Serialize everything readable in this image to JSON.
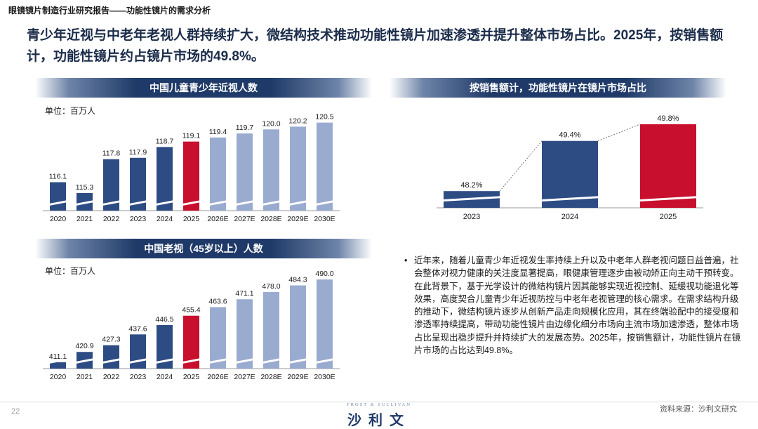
{
  "header": {
    "breadcrumb": "眼镜镜片制造行业研究报告——功能性镜片的需求分析",
    "headline": "青少年近视与中老年老视人群持续扩大，微结构技术推动功能性镜片加速渗透并提升整体市场占比。2025年，按销售额计，功能性镜片约占镜片市场的49.8%。"
  },
  "colors": {
    "navy": "#2e4c84",
    "light": "#9aabd0",
    "red": "#c8102e",
    "banner": "#1f3a68"
  },
  "chart_data": [
    {
      "type": "bar",
      "title": "中国儿童青少年近视人数",
      "unit": "单位：百万人",
      "categories": [
        "2020",
        "2021",
        "2022",
        "2023",
        "2024",
        "2025",
        "2026E",
        "2027E",
        "2028E",
        "2029E",
        "2030E"
      ],
      "values": [
        116.1,
        115.3,
        117.8,
        117.9,
        118.7,
        119.1,
        119.4,
        119.7,
        120.0,
        120.2,
        120.5
      ],
      "labels": [
        "116.1",
        "115.3",
        "117.8",
        "117.9",
        "118.7",
        "119.1",
        "119.4",
        "119.7",
        "120.0",
        "120.2",
        "120.5"
      ],
      "highlight_index": 5,
      "axis_break": true,
      "ylim": [
        114,
        121
      ]
    },
    {
      "type": "bar",
      "title": "中国老视（45岁以上）人数",
      "unit": "单位：百万人",
      "categories": [
        "2020",
        "2021",
        "2022",
        "2023",
        "2024",
        "2025",
        "2026E",
        "2027E",
        "2028E",
        "2029E",
        "2030E"
      ],
      "values": [
        411.1,
        420.9,
        427.3,
        437.6,
        446.5,
        455.4,
        463.6,
        471.1,
        478.0,
        484.3,
        490.0
      ],
      "labels": [
        "411.1",
        "420.9",
        "427.3",
        "437.6",
        "446.5",
        "455.4",
        "463.6",
        "471.1",
        "478.0",
        "484.3",
        "490.0"
      ],
      "highlight_index": 5,
      "axis_break": true,
      "ylim": [
        405,
        492
      ]
    },
    {
      "type": "bar",
      "title": "按销售额计，功能性镜片在镜片市场占比",
      "categories": [
        "2023",
        "2024",
        "2025"
      ],
      "values": [
        48.2,
        49.4,
        49.8
      ],
      "labels": [
        "48.2%",
        "49.4%",
        "49.8%"
      ],
      "highlight_index": 2,
      "axis_break": true,
      "ylim": [
        47.8,
        50
      ]
    }
  ],
  "commentary": {
    "bullet": "•",
    "text": "近年来，随着儿童青少年近视发生率持续上升以及中老年人群老视问题日益普遍，社会整体对视力健康的关注度显著提高，眼健康管理逐步由被动矫正向主动干预转变。在此背景下，基于光学设计的微结构镜片因其能够实现近视控制、延缓视功能退化等效果，高度契合儿童青少年近视防控与中老年老视管理的核心需求。在需求结构升级的推动下，微结构镜片逐步从创新产品走向规模化应用，其在终端验配中的接受度和渗透率持续提高，带动功能性镜片由边缘化细分市场向主流市场加速渗透，整体市场占比呈现出稳步提升并持续扩大的发展态势。2025年，按销售额计，功能性镜片在镜片市场的占比达到49.8%。"
  },
  "footer": {
    "page_number": "22",
    "brand_en": "FROST & SULLIVAN",
    "brand_cn": "沙利文",
    "source": "资料来源：沙利文研究"
  }
}
